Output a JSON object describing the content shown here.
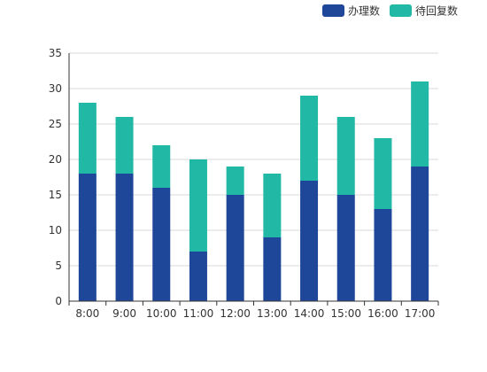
{
  "chart_data": {
    "type": "bar",
    "stacked": true,
    "categories": [
      "8:00",
      "9:00",
      "10:00",
      "11:00",
      "12:00",
      "13:00",
      "14:00",
      "15:00",
      "16:00",
      "17:00"
    ],
    "series": [
      {
        "name": "办理数",
        "values": [
          18,
          18,
          16,
          7,
          15,
          9,
          17,
          15,
          13,
          19
        ],
        "color": "#1f4799"
      },
      {
        "name": "待回复数",
        "values": [
          10,
          8,
          6,
          13,
          4,
          9,
          12,
          11,
          10,
          12
        ],
        "color": "#21b8a6"
      }
    ],
    "ylim": [
      0,
      35
    ],
    "yticks": [
      0,
      5,
      10,
      15,
      20,
      25,
      30,
      35
    ],
    "grid": true,
    "legend_position": "top-right",
    "title": "",
    "xlabel": "",
    "ylabel": ""
  }
}
